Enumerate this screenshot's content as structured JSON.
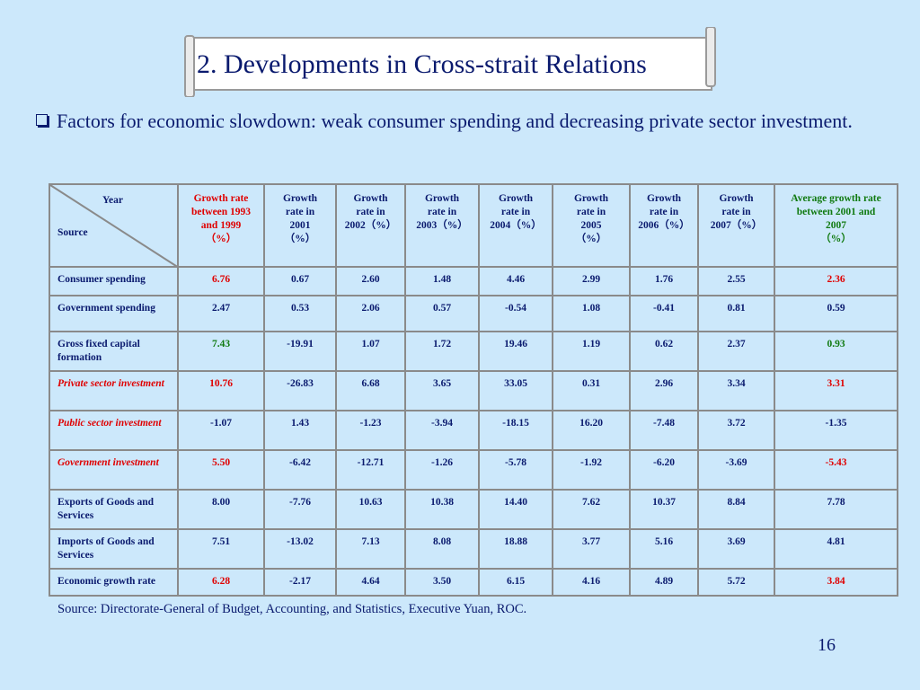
{
  "title": "2. Developments in Cross-strait Relations",
  "bullet": "Factors for economic slowdown: weak consumer spending and decreasing private sector investment.",
  "table": {
    "corner_year": "Year",
    "corner_source": "Source",
    "headers": [
      {
        "lines": [
          "Growth rate",
          "between 1993",
          "and 1999",
          "（%）"
        ],
        "color": "red"
      },
      {
        "lines": [
          "Growth",
          "rate in",
          "2001",
          "（%）"
        ],
        "color": "navy"
      },
      {
        "lines": [
          "Growth",
          "rate in",
          "2002（%）"
        ],
        "color": "navy"
      },
      {
        "lines": [
          "Growth",
          "rate in",
          "2003（%）"
        ],
        "color": "navy"
      },
      {
        "lines": [
          "Growth",
          "rate in",
          "2004（%）"
        ],
        "color": "navy"
      },
      {
        "lines": [
          "Growth",
          "rate in",
          "2005",
          "（%）"
        ],
        "color": "navy"
      },
      {
        "lines": [
          "Growth",
          "rate in",
          "2006（%）"
        ],
        "color": "navy"
      },
      {
        "lines": [
          "Growth",
          "rate in",
          "2007（%）"
        ],
        "color": "navy"
      },
      {
        "lines": [
          "Average growth rate",
          "between 2001 and",
          "2007",
          "（%）"
        ],
        "color": "green"
      }
    ],
    "rows": [
      {
        "label": "Consumer  spending",
        "style": "normal",
        "first": "red",
        "last": "red",
        "values": [
          "6.76",
          "0.67",
          "2.60",
          "1.48",
          "4.46",
          "2.99",
          "1.76",
          "2.55",
          "2.36"
        ]
      },
      {
        "label": "Government spending",
        "style": "normal",
        "first": "navy",
        "last": "navy",
        "values": [
          "2.47",
          "0.53",
          "2.06",
          "0.57",
          "-0.54",
          "1.08",
          "-0.41",
          "0.81",
          "0.59"
        ]
      },
      {
        "label": "Gross fixed capital formation",
        "style": "normal",
        "first": "green",
        "last": "green",
        "values": [
          "7.43",
          "-19.91",
          "1.07",
          "1.72",
          "19.46",
          "1.19",
          "0.62",
          "2.37",
          "0.93"
        ]
      },
      {
        "label": "Private sector investment",
        "style": "red-italic",
        "first": "red",
        "last": "red",
        "values": [
          "10.76",
          "-26.83",
          "6.68",
          "3.65",
          "33.05",
          "0.31",
          "2.96",
          "3.34",
          "3.31"
        ]
      },
      {
        "label": "Public sector investment",
        "style": "red-italic",
        "first": "navy",
        "last": "navy",
        "values": [
          "-1.07",
          "1.43",
          "-1.23",
          "-3.94",
          "-18.15",
          "16.20",
          "-7.48",
          "3.72",
          "-1.35"
        ]
      },
      {
        "label": "Government investment",
        "style": "red-italic",
        "first": "red",
        "last": "red",
        "values": [
          "5.50",
          "-6.42",
          "-12.71",
          "-1.26",
          "-5.78",
          "-1.92",
          "-6.20",
          "-3.69",
          "-5.43"
        ]
      },
      {
        "label": "Exports of Goods and Services",
        "style": "normal",
        "first": "navy",
        "last": "navy",
        "values": [
          "8.00",
          "-7.76",
          "10.63",
          "10.38",
          "14.40",
          "7.62",
          "10.37",
          "8.84",
          "7.78"
        ]
      },
      {
        "label": "Imports of Goods and Services",
        "style": "normal",
        "first": "navy",
        "last": "navy",
        "values": [
          "7.51",
          "-13.02",
          "7.13",
          "8.08",
          "18.88",
          "3.77",
          "5.16",
          "3.69",
          "4.81"
        ]
      },
      {
        "label": "Economic growth rate",
        "style": "normal",
        "first": "red",
        "last": "red",
        "values": [
          "6.28",
          "-2.17",
          "4.64",
          "3.50",
          "6.15",
          "4.16",
          "4.89",
          "5.72",
          "3.84"
        ]
      }
    ]
  },
  "source_note": "Source: Directorate-General of Budget, Accounting, and Statistics, Executive Yuan, ROC.",
  "page_number": "16",
  "colors": {
    "background": "#cce8fb",
    "navy": "#0a1a6e",
    "red": "#e00000",
    "green": "#107a10",
    "grid": "#8a8a8a"
  }
}
